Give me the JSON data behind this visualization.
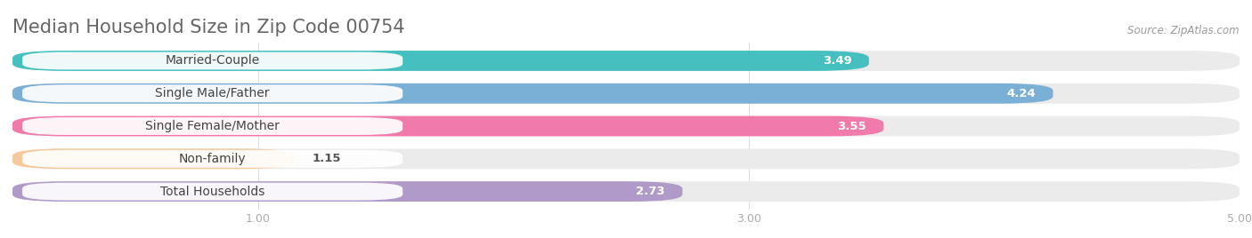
{
  "title": "Median Household Size in Zip Code 00754",
  "source": "Source: ZipAtlas.com",
  "categories": [
    "Married-Couple",
    "Single Male/Father",
    "Single Female/Mother",
    "Non-family",
    "Total Households"
  ],
  "values": [
    3.49,
    4.24,
    3.55,
    1.15,
    2.73
  ],
  "bar_colors": [
    "#45bfbf",
    "#7aafd6",
    "#f07aaa",
    "#f5c99a",
    "#b09aca"
  ],
  "label_text_colors": [
    "#555555",
    "#555555",
    "#555555",
    "#996633",
    "#555555"
  ],
  "xlim_min": 0.0,
  "xlim_max": 5.0,
  "xticks": [
    1.0,
    3.0,
    5.0
  ],
  "xtick_labels": [
    "1.00",
    "3.00",
    "5.00"
  ],
  "background_color": "#ffffff",
  "bar_bg_color": "#ebebeb",
  "title_fontsize": 15,
  "label_fontsize": 10,
  "value_fontsize": 9.5,
  "bar_height": 0.62,
  "bar_gap": 0.38
}
